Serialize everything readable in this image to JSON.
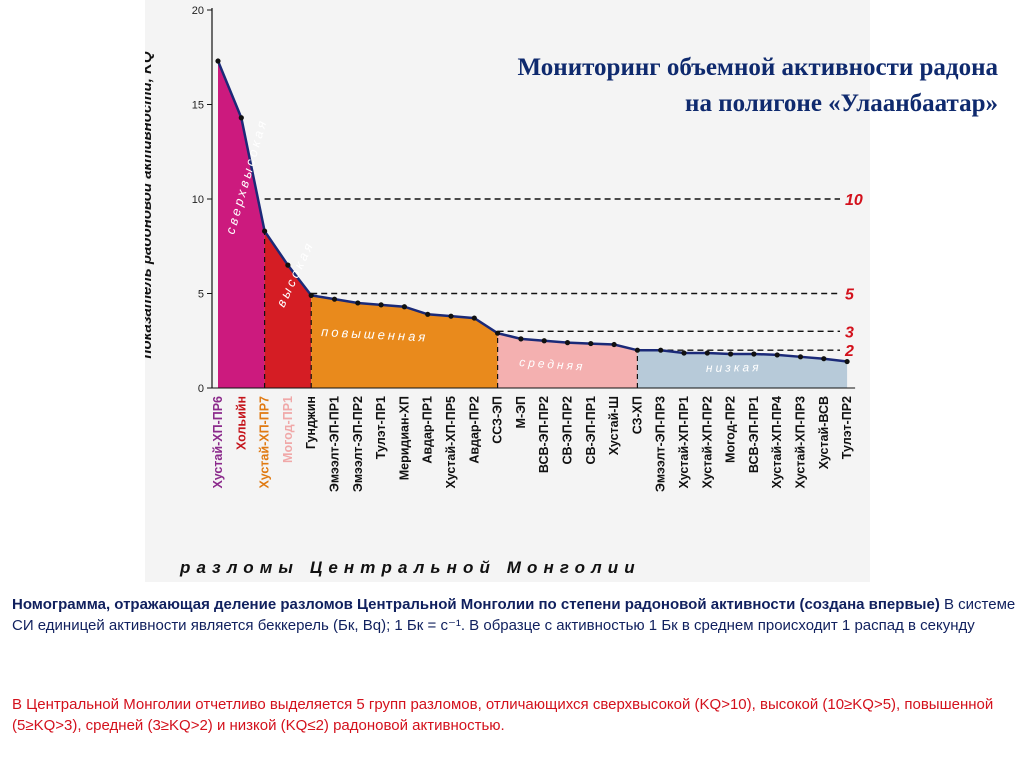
{
  "title": {
    "line1": "Мониторинг объемной активности радона",
    "line2": "на полигоне «Улаанбаатар»"
  },
  "caption": {
    "bold": "Номограмма, отражающая деление разломов Центральной Монголии по степени радоновой активности (создана впервые)",
    "rest": " В системе СИ единицей активности является беккерель (Бк, Bq); 1 Бк = с⁻¹. В образце с активностью 1 Бк в среднем происходит 1 распад в секунду"
  },
  "note": {
    "text": "В Центральной Монголии отчетливо выделяется 5 групп разломов, отличающихся сверхвысокой (KQ>10), высокой (10≥KQ>5), повышенной (5≥KQ>3), средней (3≥KQ>2) и низкой (KQ≤2) радоновой активностью."
  },
  "chart_data": {
    "type": "area",
    "ylabel": "показатель радоновой активности, KQ",
    "xlabel": "разломы Центральной Монголии",
    "ylim": [
      0,
      20
    ],
    "yticks": [
      "0",
      "5",
      "10",
      "15",
      "20"
    ],
    "grid": false,
    "categories": [
      "Хустай-ХП-ПР6",
      "Хольийн",
      "Хустай-ХП-ПР7",
      "Могод-ПР1",
      "Гунджин",
      "Эмээлт-ЭП-ПР1",
      "Эмээлт-ЭП-ПР2",
      "Тулэт-ПР1",
      "Меридиан-ХП",
      "Авдар-ПР1",
      "Хустай-ХП-ПР5",
      "Авдар-ПР2",
      "ССЗ-ЭП",
      "М-ЭП",
      "ВСВ-ЭП-ПР2",
      "СВ-ЭП-ПР2",
      "СВ-ЭП-ПР1",
      "Хустай-Ш",
      "СЗ-ХП",
      "Эмээлт-ЭП-ПР3",
      "Хустай-ХП-ПР1",
      "Хустай-ХП-ПР2",
      "Могод-ПР2",
      "ВСВ-ЭП-ПР1",
      "Хустай-ХП-ПР4",
      "Хустай-ХП-ПР3",
      "Хустай-ВСВ",
      "Тулэт-ПР2"
    ],
    "values": [
      17.3,
      14.3,
      8.3,
      6.5,
      4.9,
      4.7,
      4.5,
      4.4,
      4.3,
      3.9,
      3.8,
      3.7,
      2.9,
      2.6,
      2.5,
      2.4,
      2.35,
      2.3,
      2.0,
      2.0,
      1.85,
      1.85,
      1.8,
      1.8,
      1.75,
      1.65,
      1.55,
      1.4
    ],
    "threshold_lines": [
      {
        "value": 10,
        "label": "10"
      },
      {
        "value": 5,
        "label": "5"
      },
      {
        "value": 3,
        "label": "3"
      },
      {
        "value": 2,
        "label": "2"
      }
    ],
    "zones": [
      {
        "name": "сверхвысокая",
        "from": 0,
        "to": 2,
        "color": "#cc1a7e"
      },
      {
        "name": "высокая",
        "from": 2,
        "to": 4,
        "color": "#d51d24"
      },
      {
        "name": "повышенная",
        "from": 4,
        "to": 12,
        "color": "#e98a1c"
      },
      {
        "name": "средняя",
        "from": 12,
        "to": 18,
        "color": "#f4b0b0"
      },
      {
        "name": "низкая",
        "from": 18,
        "to": 27,
        "color": "#b7cad9"
      }
    ],
    "label_colors": {
      "0": "#8b2a8b",
      "1": "#c4141b",
      "2": "#e07a12",
      "3": "#f0a8a8"
    },
    "line_color": "#1b2a78",
    "threshold_label_color": "#d3111c"
  }
}
